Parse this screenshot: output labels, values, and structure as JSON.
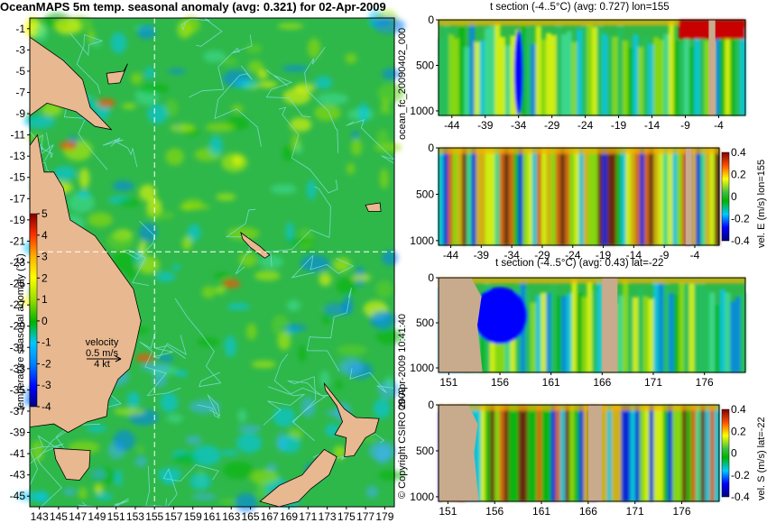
{
  "title": "OceanMAPS 5m temp. seasonal anomaly (avg: 0.321) for 02-Apr-2009",
  "colors": {
    "land": "#e8b890",
    "land_section": "#c8aa8c",
    "contour": "#7fe0e0",
    "crosshair": "#ffffff",
    "cmap": [
      "#00007f",
      "#0000ff",
      "#007fff",
      "#00c8ff",
      "#40e0a0",
      "#00b400",
      "#9fe000",
      "#ffff00",
      "#ffaf00",
      "#ff5000",
      "#c80000",
      "#7f0000"
    ]
  },
  "colorbar_main": {
    "label": "temperature seasonal anomaly (°C)",
    "ticks": [
      "5",
      "4",
      "3",
      "2",
      "1",
      "0",
      "-1",
      "-2",
      "-3",
      "-4"
    ]
  },
  "velocity": {
    "label": "velocity",
    "value": "0.5 m/s",
    "alt": "4 kt"
  },
  "chart_data": [
    {
      "type": "heatmap",
      "title": "OceanMAPS 5m temp. seasonal anomaly (avg: 0.321) for 02-Apr-2009",
      "x_ticks": [
        "143",
        "145",
        "147",
        "149",
        "151",
        "153",
        "155",
        "157",
        "159",
        "161",
        "163",
        "165",
        "167",
        "169",
        "171",
        "173",
        "175",
        "177",
        "179"
      ],
      "y_ticks": [
        "-1",
        "-3",
        "-5",
        "-7",
        "-9",
        "-11",
        "-13",
        "-15",
        "-17",
        "-19",
        "-21",
        "-23",
        "-25",
        "-27",
        "-29",
        "-31",
        "-33",
        "-35",
        "-37",
        "-39",
        "-41",
        "-43",
        "-45"
      ],
      "xlim": [
        142,
        180
      ],
      "ylim": [
        -46,
        0
      ],
      "section_lon": 155,
      "section_lat": -22,
      "avg": 0.321,
      "colorbar_range": [
        -4,
        5
      ]
    },
    {
      "type": "heatmap",
      "title": "t section (-4..5°C) (avg: 0.727) lon=155",
      "x_ticks": [
        "-44",
        "-39",
        "-34",
        "-29",
        "-24",
        "-19",
        "-14",
        "-9",
        "-4"
      ],
      "y_ticks": [
        "0",
        "500",
        "1000"
      ],
      "xlim": [
        -46,
        0
      ],
      "ylim": [
        1050,
        0
      ],
      "avg": 0.727
    },
    {
      "type": "heatmap",
      "title": "",
      "x_ticks": [
        "-44",
        "-39",
        "-34",
        "-29",
        "-24",
        "-19",
        "-14",
        "-9",
        "-4"
      ],
      "y_ticks": [
        "0",
        "500",
        "1000"
      ],
      "xlim": [
        -46,
        0
      ],
      "ylim": [
        1050,
        0
      ],
      "colorbar_label": "vel. E (m/s) lon=155",
      "colorbar_ticks": [
        "0.4",
        "0.2",
        "0",
        "-0.2",
        "-0.4"
      ]
    },
    {
      "type": "heatmap",
      "title": "t section (-4..5°C) (avg: 0.43) lat=-22",
      "x_ticks": [
        "151",
        "156",
        "161",
        "166",
        "171",
        "176"
      ],
      "y_ticks": [
        "0",
        "500",
        "1000"
      ],
      "xlim": [
        150,
        180
      ],
      "ylim": [
        1050,
        0
      ],
      "avg": 0.43
    },
    {
      "type": "heatmap",
      "title": "",
      "x_ticks": [
        "151",
        "156",
        "161",
        "166",
        "171",
        "176"
      ],
      "y_ticks": [
        "0",
        "500",
        "1000"
      ],
      "xlim": [
        150,
        180
      ],
      "ylim": [
        1050,
        0
      ],
      "colorbar_label": "vel. S (m/s) lat=-22",
      "colorbar_ticks": [
        "0.4",
        "0.2",
        "0",
        "-0.2",
        "-0.4"
      ]
    }
  ],
  "side_labels": {
    "file": "ocean_fc_20090402_000",
    "copyright": "© Copyright CSIRO 2009",
    "timestamp": "09-Apr-2009 10:41:40"
  }
}
